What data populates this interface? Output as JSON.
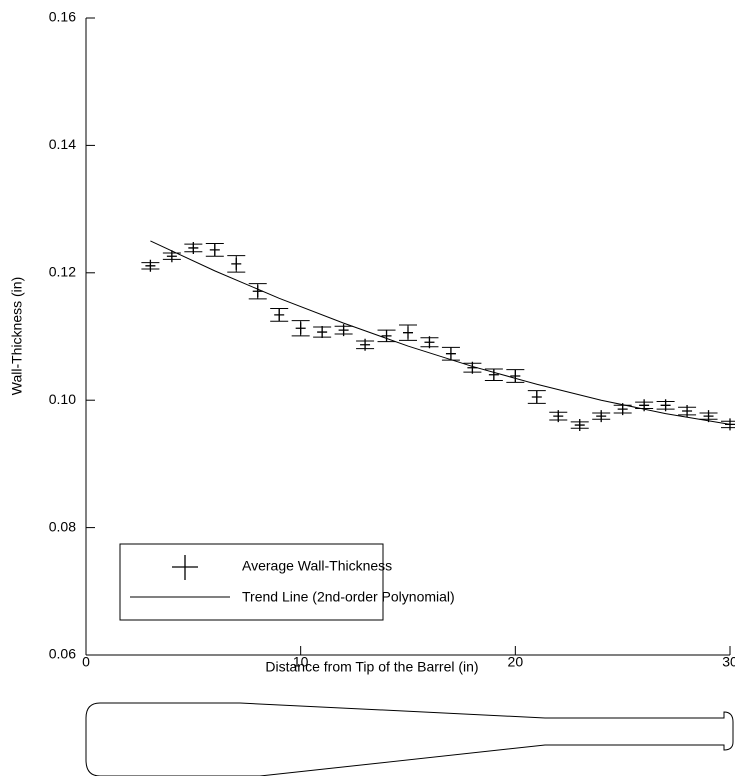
{
  "chart_data": {
    "type": "scatter",
    "xlabel": "Distance from Tip of the Barrel (in)",
    "ylabel": "Wall-Thickness (in)",
    "xlim": [
      0,
      30
    ],
    "xticks": [
      0,
      10,
      20,
      30
    ],
    "ylim": [
      0.06,
      0.16
    ],
    "yticks": [
      0.06,
      0.08,
      {
        "value": 0.1,
        "label": "0.10"
      },
      0.12,
      0.14,
      0.16
    ],
    "legend": "lower left",
    "series": [
      {
        "name": "Average Wall-Thickness",
        "color": "#000000",
        "x": [
          3,
          4,
          5,
          6,
          7,
          8,
          9,
          10,
          11,
          12,
          13,
          14,
          15,
          16,
          17,
          18,
          19,
          20,
          21,
          22,
          23,
          24,
          25,
          26,
          27,
          28,
          29,
          30
        ],
        "values": [
          0.1211,
          0.1226,
          0.1239,
          0.1236,
          0.1214,
          0.1171,
          0.1134,
          0.1113,
          0.1107,
          0.111,
          0.1087,
          0.1101,
          0.1106,
          0.1091,
          0.1073,
          0.1051,
          0.104,
          0.1038,
          0.1005,
          0.0975,
          0.0961,
          0.0975,
          0.0986,
          0.0992,
          0.0992,
          0.0983,
          0.0975,
          0.0962
        ],
        "errors": [
          0.0005,
          0.0005,
          0.0006,
          0.001,
          0.0013,
          0.0012,
          0.001,
          0.0012,
          0.0008,
          0.0006,
          0.0006,
          0.0009,
          0.0012,
          0.0007,
          0.001,
          0.0007,
          0.0009,
          0.001,
          0.001,
          0.0006,
          0.0005,
          0.0005,
          0.0006,
          0.0005,
          0.0006,
          0.0006,
          0.0005,
          0.0005
        ]
      },
      {
        "name": "Trend Line (2nd-order Polynomial)",
        "color": "#000000",
        "x": [
          3,
          6,
          9,
          12,
          15,
          18,
          21,
          24,
          27,
          30
        ],
        "values": [
          0.125,
          0.1203,
          0.116,
          0.1121,
          0.1085,
          0.1053,
          0.1025,
          0.1,
          0.0979,
          0.0962
        ]
      }
    ]
  }
}
